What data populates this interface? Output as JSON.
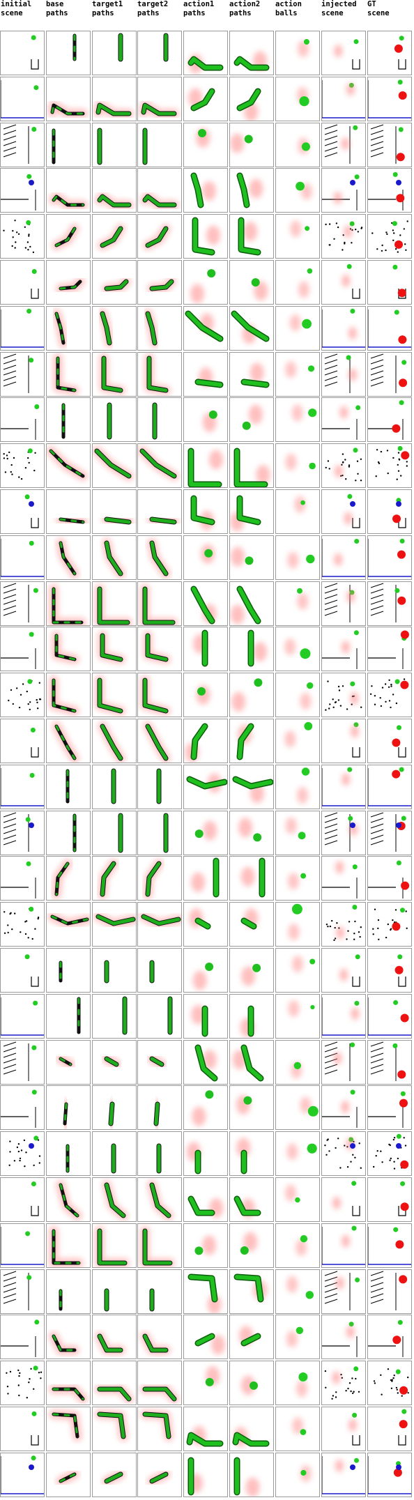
{
  "columns": [
    {
      "key": "initial_scene",
      "label": "initial\nscene"
    },
    {
      "key": "base_paths",
      "label": "base\npaths"
    },
    {
      "key": "target1_paths",
      "label": "target1\npaths"
    },
    {
      "key": "target2_paths",
      "label": "target2\npaths"
    },
    {
      "key": "action1_paths",
      "label": "action1\npaths"
    },
    {
      "key": "action2_paths",
      "label": "action2\npaths"
    },
    {
      "key": "action_balls",
      "label": "action\nballs"
    },
    {
      "key": "injected_scene",
      "label": "injected\nscene"
    },
    {
      "key": "gt_scene",
      "label": "GT\nscene"
    }
  ],
  "row_count": 32,
  "colors": {
    "background": "#ffffff",
    "cell_border": "#9a9a9a",
    "green_object": "#22cc22",
    "red_object": "#ee1111",
    "blue_object": "#1a1acc",
    "wall": "#000000",
    "path_dark": "#111111",
    "path_green": "#1fbf1f",
    "heat_red": "#ff8080"
  }
}
